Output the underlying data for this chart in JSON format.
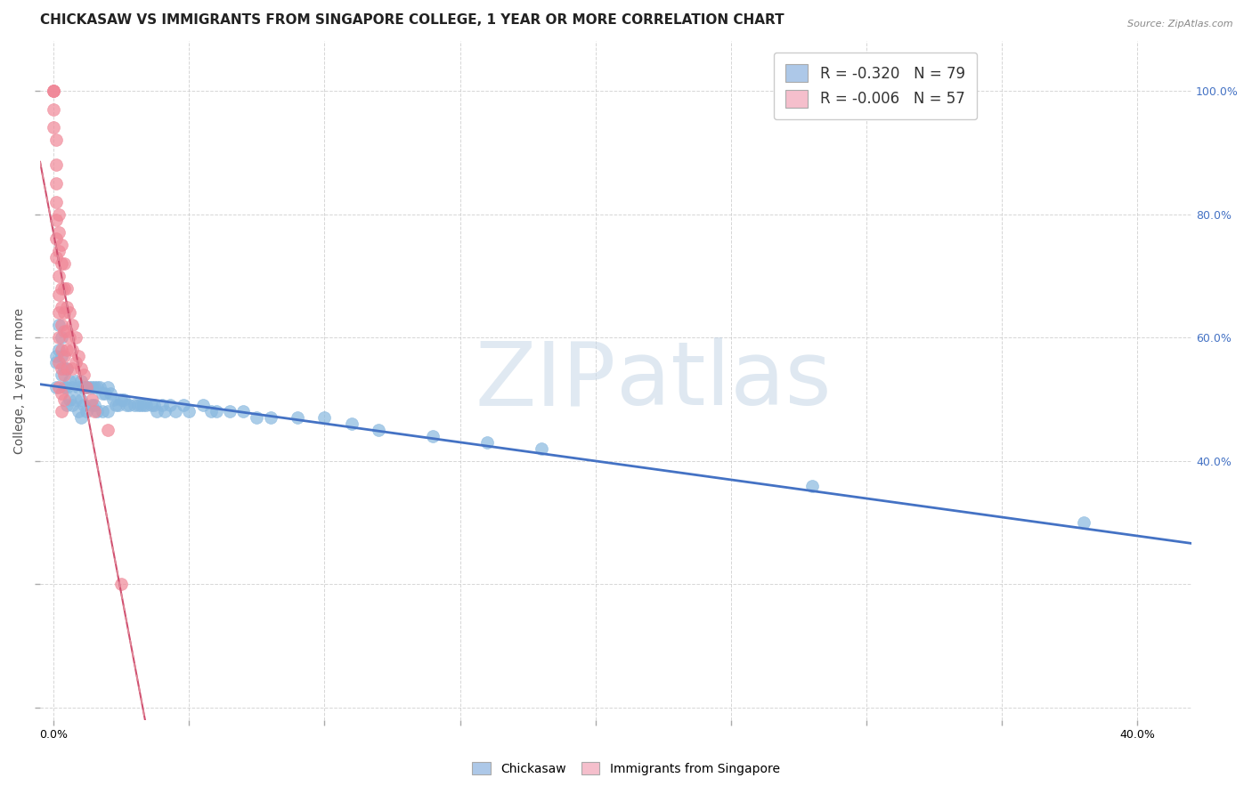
{
  "title": "CHICKASAW VS IMMIGRANTS FROM SINGAPORE COLLEGE, 1 YEAR OR MORE CORRELATION CHART",
  "source_text": "Source: ZipAtlas.com",
  "ylabel": "College, 1 year or more",
  "xlim": [
    -0.005,
    0.42
  ],
  "ylim": [
    -0.02,
    1.08
  ],
  "legend_label1": "R = -0.320   N = 79",
  "legend_label2": "R = -0.006   N = 57",
  "legend_color1": "#adc8e8",
  "legend_color2": "#f5bfcc",
  "scatter_color1": "#88b8df",
  "scatter_color2": "#f08898",
  "line_color1": "#4472c4",
  "line_color2": "#d05070",
  "line_color2_dashed": "#e08898",
  "watermark_text": "ZIPatlas",
  "background_color": "#ffffff",
  "grid_color": "#cccccc",
  "title_fontsize": 11,
  "axis_label_fontsize": 10,
  "tick_fontsize": 9,
  "chickasaw_x": [
    0.001,
    0.001,
    0.001,
    0.002,
    0.002,
    0.003,
    0.003,
    0.003,
    0.004,
    0.004,
    0.005,
    0.005,
    0.005,
    0.006,
    0.006,
    0.007,
    0.007,
    0.008,
    0.008,
    0.009,
    0.009,
    0.01,
    0.01,
    0.01,
    0.011,
    0.011,
    0.012,
    0.012,
    0.013,
    0.014,
    0.014,
    0.015,
    0.015,
    0.016,
    0.016,
    0.017,
    0.018,
    0.018,
    0.019,
    0.02,
    0.02,
    0.021,
    0.022,
    0.023,
    0.024,
    0.025,
    0.026,
    0.027,
    0.028,
    0.03,
    0.031,
    0.032,
    0.033,
    0.034,
    0.036,
    0.037,
    0.038,
    0.04,
    0.041,
    0.043,
    0.045,
    0.048,
    0.05,
    0.055,
    0.058,
    0.06,
    0.065,
    0.07,
    0.075,
    0.08,
    0.09,
    0.1,
    0.11,
    0.12,
    0.14,
    0.16,
    0.18,
    0.28,
    0.38
  ],
  "chickasaw_y": [
    0.57,
    0.56,
    0.52,
    0.62,
    0.58,
    0.6,
    0.57,
    0.54,
    0.55,
    0.52,
    0.55,
    0.52,
    0.49,
    0.53,
    0.5,
    0.52,
    0.49,
    0.53,
    0.5,
    0.52,
    0.48,
    0.53,
    0.5,
    0.47,
    0.52,
    0.49,
    0.52,
    0.48,
    0.52,
    0.52,
    0.49,
    0.52,
    0.49,
    0.52,
    0.48,
    0.52,
    0.51,
    0.48,
    0.51,
    0.52,
    0.48,
    0.51,
    0.5,
    0.49,
    0.49,
    0.5,
    0.5,
    0.49,
    0.49,
    0.49,
    0.49,
    0.49,
    0.49,
    0.49,
    0.49,
    0.49,
    0.48,
    0.49,
    0.48,
    0.49,
    0.48,
    0.49,
    0.48,
    0.49,
    0.48,
    0.48,
    0.48,
    0.48,
    0.47,
    0.47,
    0.47,
    0.47,
    0.46,
    0.45,
    0.44,
    0.43,
    0.42,
    0.36,
    0.3
  ],
  "singapore_x": [
    0.0,
    0.0,
    0.0,
    0.0,
    0.0,
    0.001,
    0.001,
    0.001,
    0.001,
    0.001,
    0.001,
    0.001,
    0.002,
    0.002,
    0.002,
    0.002,
    0.002,
    0.002,
    0.002,
    0.002,
    0.002,
    0.003,
    0.003,
    0.003,
    0.003,
    0.003,
    0.003,
    0.003,
    0.003,
    0.003,
    0.004,
    0.004,
    0.004,
    0.004,
    0.004,
    0.004,
    0.004,
    0.005,
    0.005,
    0.005,
    0.005,
    0.005,
    0.006,
    0.006,
    0.007,
    0.007,
    0.007,
    0.008,
    0.008,
    0.009,
    0.01,
    0.011,
    0.012,
    0.014,
    0.015,
    0.02,
    0.025
  ],
  "singapore_y": [
    1.0,
    1.0,
    1.0,
    0.97,
    0.94,
    0.92,
    0.88,
    0.85,
    0.82,
    0.79,
    0.76,
    0.73,
    0.8,
    0.77,
    0.74,
    0.7,
    0.67,
    0.64,
    0.6,
    0.56,
    0.52,
    0.75,
    0.72,
    0.68,
    0.65,
    0.62,
    0.58,
    0.55,
    0.51,
    0.48,
    0.72,
    0.68,
    0.64,
    0.61,
    0.57,
    0.54,
    0.5,
    0.68,
    0.65,
    0.61,
    0.58,
    0.55,
    0.64,
    0.6,
    0.62,
    0.58,
    0.55,
    0.6,
    0.56,
    0.57,
    0.55,
    0.54,
    0.52,
    0.5,
    0.48,
    0.45,
    0.2
  ]
}
